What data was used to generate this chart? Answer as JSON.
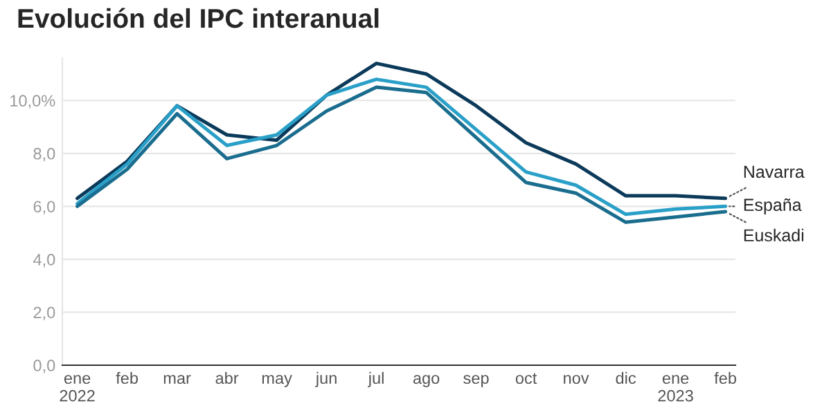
{
  "chart_data": {
    "type": "line",
    "title": "Evolución del IPC interanual",
    "categories": [
      "ene\n2022",
      "feb",
      "mar",
      "abr",
      "may",
      "jun",
      "jul",
      "ago",
      "sep",
      "oct",
      "nov",
      "dic",
      "ene\n2023",
      "feb"
    ],
    "series": [
      {
        "name": "Navarra",
        "color": "#0b3a5a",
        "values": [
          6.3,
          7.7,
          9.8,
          8.7,
          8.5,
          10.2,
          11.4,
          11.0,
          9.8,
          8.4,
          7.6,
          6.4,
          6.4,
          6.3
        ]
      },
      {
        "name": "España",
        "color": "#2aa0c8",
        "values": [
          6.1,
          7.6,
          9.8,
          8.3,
          8.7,
          10.2,
          10.8,
          10.5,
          8.9,
          7.3,
          6.8,
          5.7,
          5.9,
          6.0
        ]
      },
      {
        "name": "Euskadi",
        "color": "#1a6d8e",
        "values": [
          6.0,
          7.4,
          9.5,
          7.8,
          8.3,
          9.6,
          10.5,
          10.3,
          8.6,
          6.9,
          6.5,
          5.4,
          5.6,
          5.8
        ]
      }
    ],
    "ylim": [
      0,
      11.6
    ],
    "yticks": [
      {
        "value": 0,
        "label": "0,0"
      },
      {
        "value": 2,
        "label": "2,0"
      },
      {
        "value": 4,
        "label": "4,0"
      },
      {
        "value": 6,
        "label": "6,0"
      },
      {
        "value": 8,
        "label": "8,0"
      },
      {
        "value": 10,
        "label": "10,0%"
      }
    ],
    "grid": "y",
    "line_style": "solid",
    "marker": "none"
  }
}
